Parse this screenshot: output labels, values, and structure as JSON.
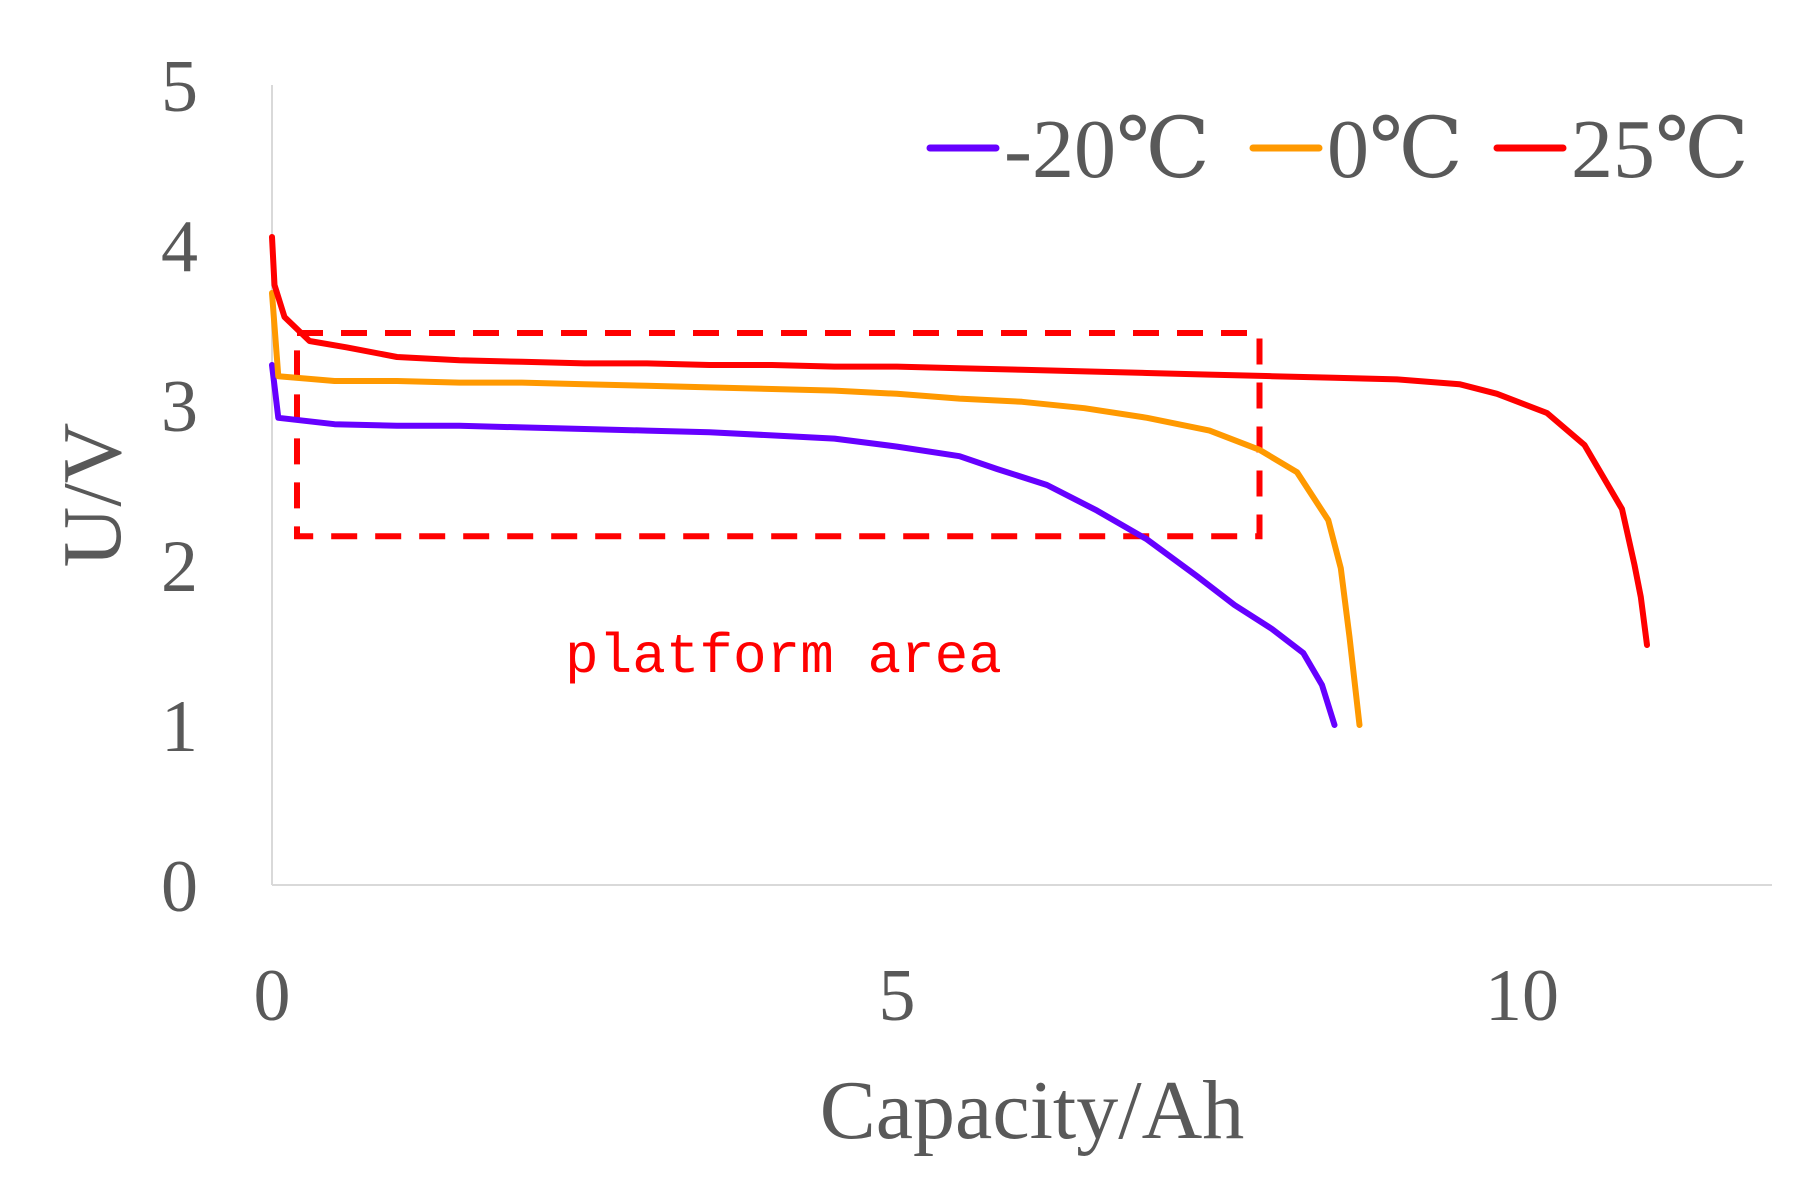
{
  "chart_data": {
    "type": "line",
    "title": "",
    "xlabel": "Capacity/Ah",
    "ylabel": "U/V",
    "xlim": [
      0,
      12
    ],
    "ylim": [
      0,
      5
    ],
    "x_ticks": [
      0,
      5,
      10
    ],
    "y_ticks": [
      0,
      1,
      2,
      3,
      4,
      5
    ],
    "grid": false,
    "legend_position": "top-right",
    "series": [
      {
        "name": "-20℃",
        "color": "#6600ff",
        "points": [
          [
            0.0,
            3.25
          ],
          [
            0.05,
            2.92
          ],
          [
            0.5,
            2.88
          ],
          [
            1.0,
            2.87
          ],
          [
            1.5,
            2.87
          ],
          [
            2.0,
            2.86
          ],
          [
            2.5,
            2.85
          ],
          [
            3.0,
            2.84
          ],
          [
            3.5,
            2.83
          ],
          [
            4.0,
            2.81
          ],
          [
            4.5,
            2.79
          ],
          [
            5.0,
            2.74
          ],
          [
            5.5,
            2.68
          ],
          [
            5.8,
            2.6
          ],
          [
            6.2,
            2.5
          ],
          [
            6.6,
            2.34
          ],
          [
            7.0,
            2.16
          ],
          [
            7.4,
            1.93
          ],
          [
            7.7,
            1.75
          ],
          [
            8.0,
            1.6
          ],
          [
            8.25,
            1.45
          ],
          [
            8.4,
            1.25
          ],
          [
            8.5,
            1.0
          ]
        ]
      },
      {
        "name": "0℃",
        "color": "#ff9900",
        "points": [
          [
            0.0,
            3.7
          ],
          [
            0.05,
            3.18
          ],
          [
            0.5,
            3.15
          ],
          [
            1.0,
            3.15
          ],
          [
            1.5,
            3.14
          ],
          [
            2.0,
            3.14
          ],
          [
            2.5,
            3.13
          ],
          [
            3.0,
            3.12
          ],
          [
            3.5,
            3.11
          ],
          [
            4.0,
            3.1
          ],
          [
            4.5,
            3.09
          ],
          [
            5.0,
            3.07
          ],
          [
            5.5,
            3.04
          ],
          [
            6.0,
            3.02
          ],
          [
            6.5,
            2.98
          ],
          [
            7.0,
            2.92
          ],
          [
            7.5,
            2.84
          ],
          [
            7.9,
            2.72
          ],
          [
            8.2,
            2.58
          ],
          [
            8.45,
            2.28
          ],
          [
            8.55,
            1.98
          ],
          [
            8.62,
            1.55
          ],
          [
            8.7,
            1.0
          ]
        ]
      },
      {
        "name": "25℃",
        "color": "#ff0000",
        "points": [
          [
            0.0,
            4.05
          ],
          [
            0.02,
            3.75
          ],
          [
            0.1,
            3.55
          ],
          [
            0.3,
            3.4
          ],
          [
            0.6,
            3.36
          ],
          [
            1.0,
            3.3
          ],
          [
            1.5,
            3.28
          ],
          [
            2.0,
            3.27
          ],
          [
            2.5,
            3.26
          ],
          [
            3.0,
            3.26
          ],
          [
            3.5,
            3.25
          ],
          [
            4.0,
            3.25
          ],
          [
            4.5,
            3.24
          ],
          [
            5.0,
            3.24
          ],
          [
            5.5,
            3.23
          ],
          [
            6.0,
            3.22
          ],
          [
            6.5,
            3.21
          ],
          [
            7.0,
            3.2
          ],
          [
            7.5,
            3.19
          ],
          [
            8.0,
            3.18
          ],
          [
            8.5,
            3.17
          ],
          [
            9.0,
            3.16
          ],
          [
            9.5,
            3.13
          ],
          [
            9.8,
            3.07
          ],
          [
            10.2,
            2.95
          ],
          [
            10.5,
            2.75
          ],
          [
            10.8,
            2.35
          ],
          [
            10.9,
            2.0
          ],
          [
            10.95,
            1.8
          ],
          [
            11.0,
            1.5
          ]
        ]
      }
    ],
    "annotations": [
      {
        "type": "dashed-rectangle",
        "label": "platform area",
        "color": "#ff0000",
        "x_range": [
          0.2,
          7.9
        ],
        "y_range": [
          2.18,
          3.45
        ]
      }
    ]
  }
}
